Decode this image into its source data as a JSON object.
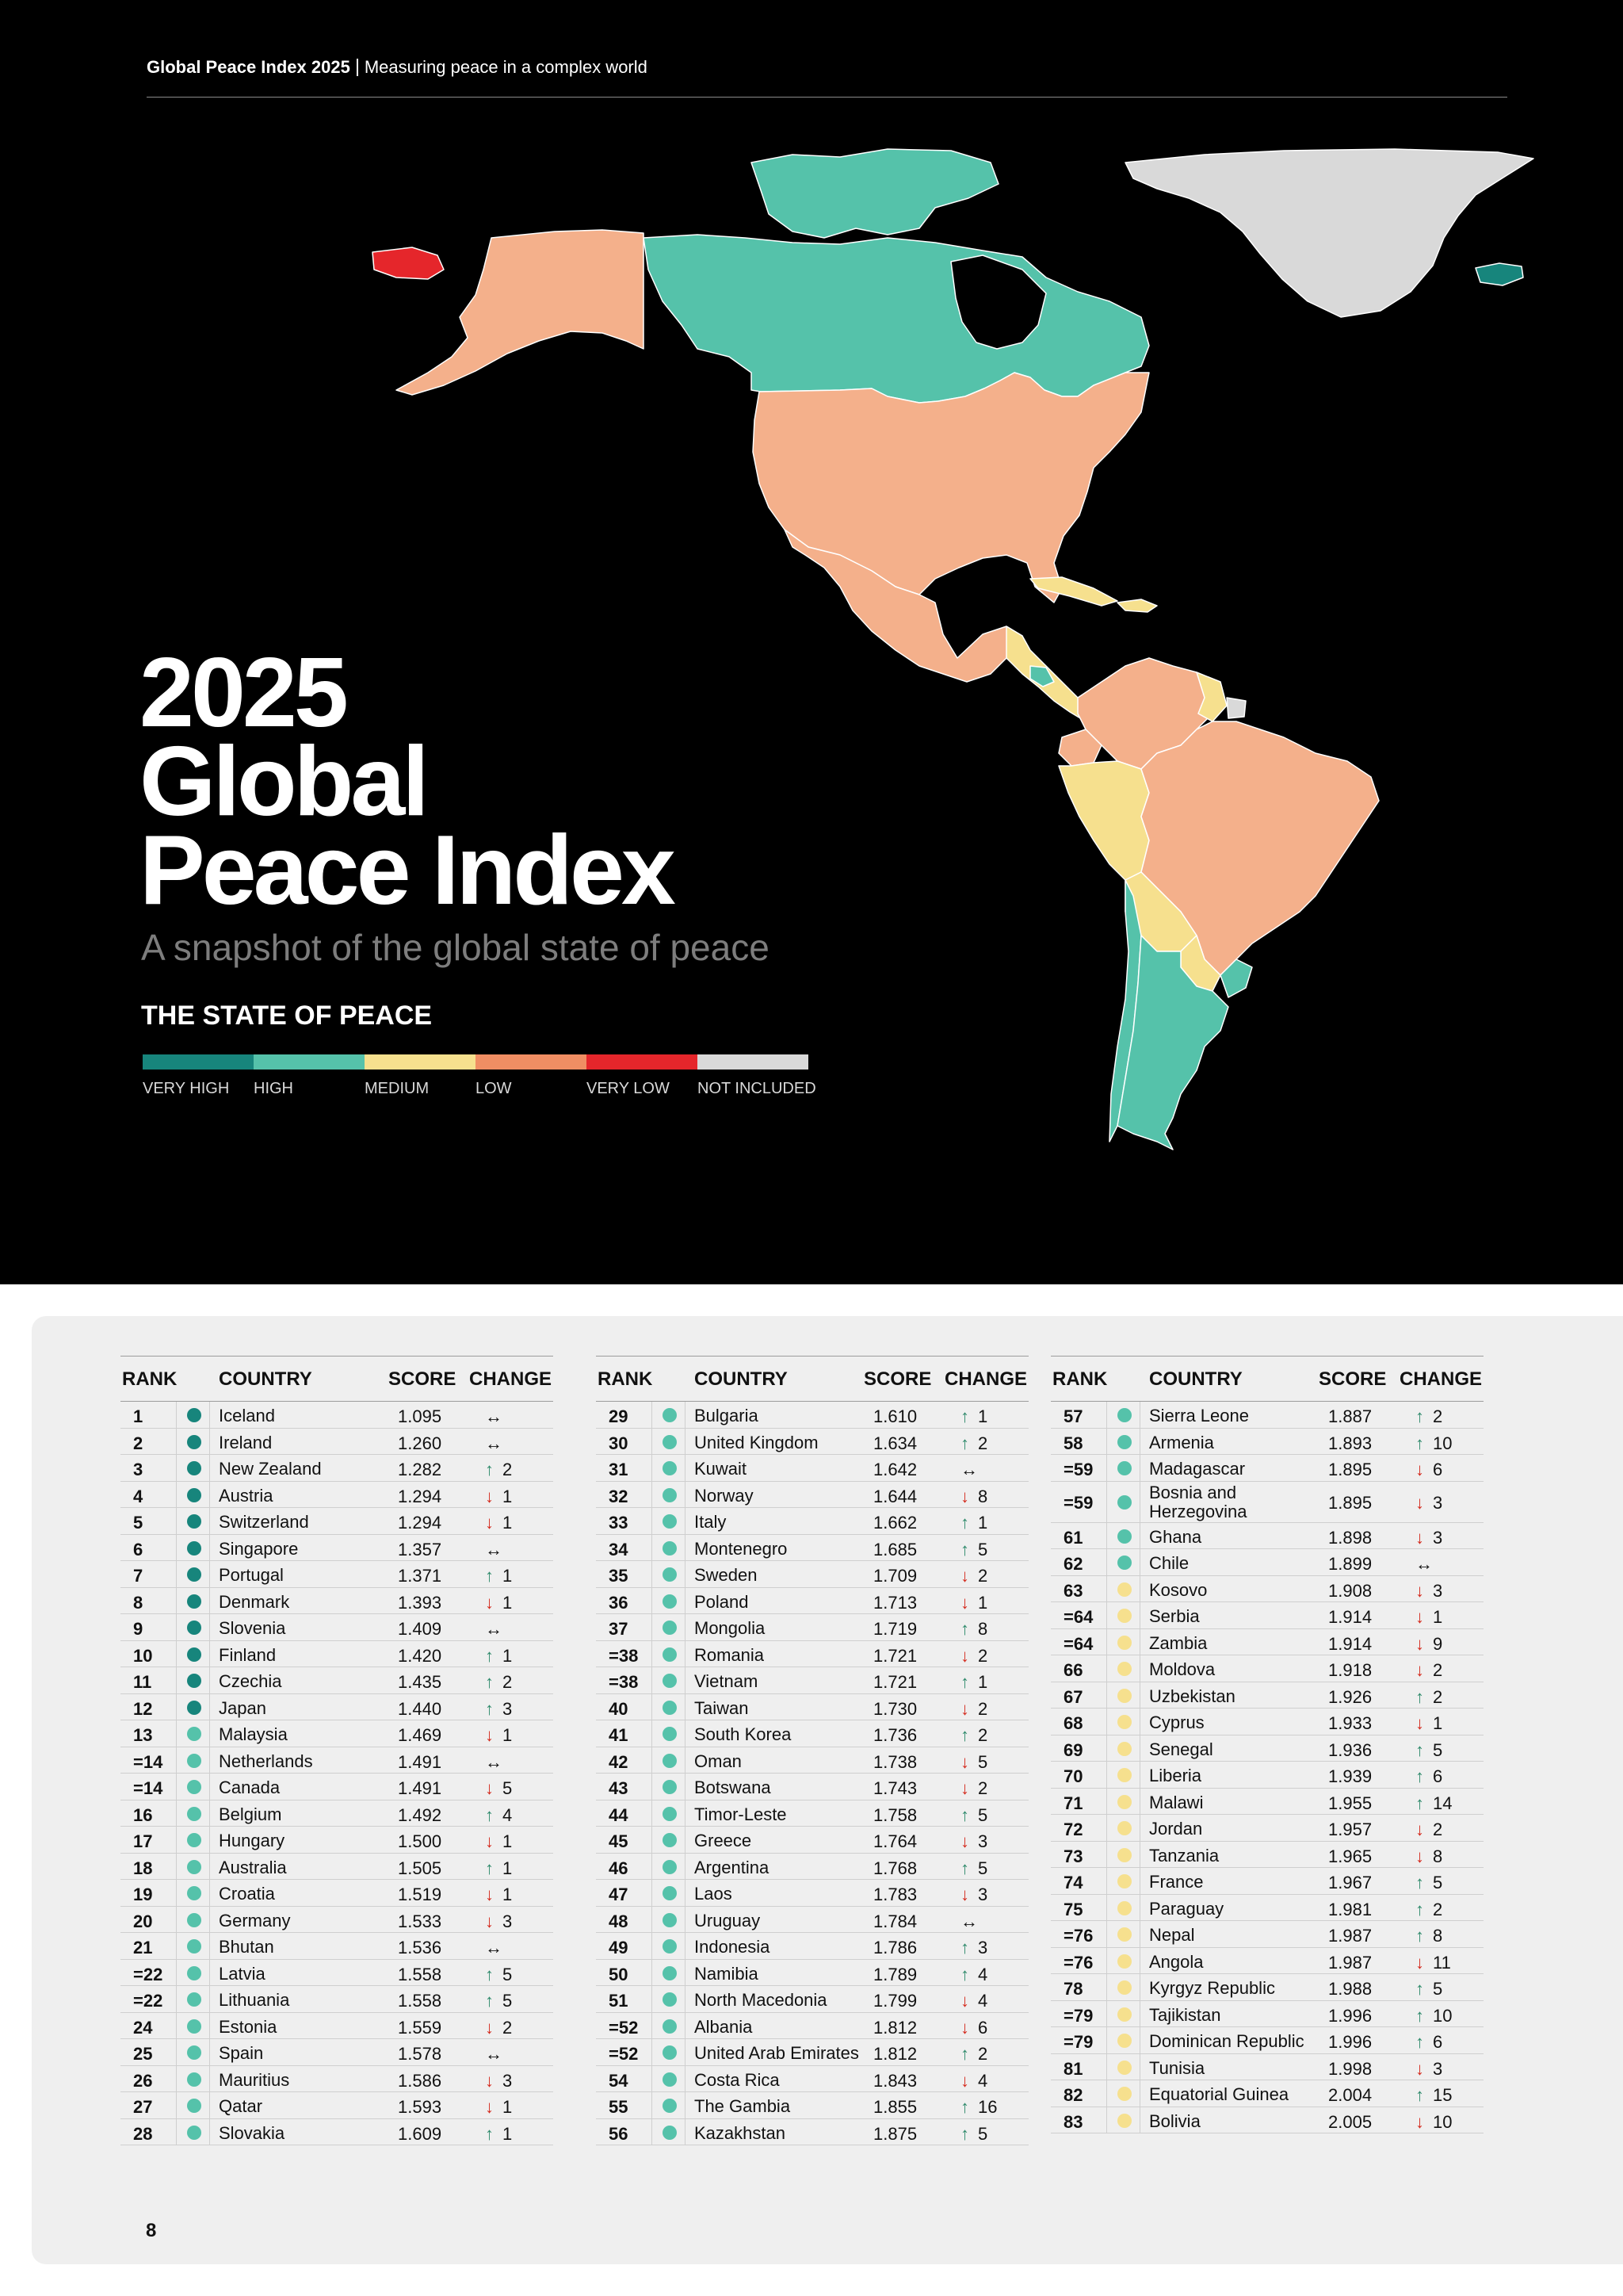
{
  "header": {
    "doc_title": "Global Peace Index 2025",
    "doc_subtitle": "Measuring peace in a complex world"
  },
  "hero": {
    "title_lines": [
      "2025",
      "Global",
      "Peace Index"
    ],
    "subtitle": "A snapshot of the global state of peace",
    "state_title": "THE STATE OF PEACE",
    "legend": [
      {
        "label": "VERY HIGH",
        "color": "#17857c"
      },
      {
        "label": "HIGH",
        "color": "#55c2aa"
      },
      {
        "label": "MEDIUM",
        "color": "#f6e08e"
      },
      {
        "label": "LOW",
        "color": "#f08e63"
      },
      {
        "label": "VERY LOW",
        "color": "#e5262b"
      },
      {
        "label": "NOT INCLUDED",
        "color": "#d9d9d9"
      }
    ]
  },
  "map_colors": {
    "very_high": "#17857c",
    "high": "#55c2aa",
    "medium": "#f6e08e",
    "low": "#f4b08b",
    "very_low": "#e5262b",
    "not_included": "#d9d9d9"
  },
  "table_headers": {
    "rank": "RANK",
    "country": "COUNTRY",
    "score": "SCORE",
    "change": "CHANGE"
  },
  "change_symbols": {
    "up": "↑",
    "down": "↓",
    "same": "↔"
  },
  "columns": [
    [
      {
        "rank": "1",
        "country": "Iceland",
        "score": "1.095",
        "level": "very_high",
        "dir": "same",
        "n": ""
      },
      {
        "rank": "2",
        "country": "Ireland",
        "score": "1.260",
        "level": "very_high",
        "dir": "same",
        "n": ""
      },
      {
        "rank": "3",
        "country": "New Zealand",
        "score": "1.282",
        "level": "very_high",
        "dir": "up",
        "n": "2"
      },
      {
        "rank": "4",
        "country": "Austria",
        "score": "1.294",
        "level": "very_high",
        "dir": "down",
        "n": "1"
      },
      {
        "rank": "5",
        "country": "Switzerland",
        "score": "1.294",
        "level": "very_high",
        "dir": "down",
        "n": "1"
      },
      {
        "rank": "6",
        "country": "Singapore",
        "score": "1.357",
        "level": "very_high",
        "dir": "same",
        "n": ""
      },
      {
        "rank": "7",
        "country": "Portugal",
        "score": "1.371",
        "level": "very_high",
        "dir": "up",
        "n": "1"
      },
      {
        "rank": "8",
        "country": "Denmark",
        "score": "1.393",
        "level": "very_high",
        "dir": "down",
        "n": "1"
      },
      {
        "rank": "9",
        "country": "Slovenia",
        "score": "1.409",
        "level": "very_high",
        "dir": "same",
        "n": ""
      },
      {
        "rank": "10",
        "country": "Finland",
        "score": "1.420",
        "level": "very_high",
        "dir": "up",
        "n": "1"
      },
      {
        "rank": "11",
        "country": "Czechia",
        "score": "1.435",
        "level": "very_high",
        "dir": "up",
        "n": "2"
      },
      {
        "rank": "12",
        "country": "Japan",
        "score": "1.440",
        "level": "very_high",
        "dir": "up",
        "n": "3"
      },
      {
        "rank": "13",
        "country": "Malaysia",
        "score": "1.469",
        "level": "high",
        "dir": "down",
        "n": "1"
      },
      {
        "rank": "=14",
        "country": "Netherlands",
        "score": "1.491",
        "level": "high",
        "dir": "same",
        "n": ""
      },
      {
        "rank": "=14",
        "country": "Canada",
        "score": "1.491",
        "level": "high",
        "dir": "down",
        "n": "5"
      },
      {
        "rank": "16",
        "country": "Belgium",
        "score": "1.492",
        "level": "high",
        "dir": "up",
        "n": "4"
      },
      {
        "rank": "17",
        "country": "Hungary",
        "score": "1.500",
        "level": "high",
        "dir": "down",
        "n": "1"
      },
      {
        "rank": "18",
        "country": "Australia",
        "score": "1.505",
        "level": "high",
        "dir": "up",
        "n": "1"
      },
      {
        "rank": "19",
        "country": "Croatia",
        "score": "1.519",
        "level": "high",
        "dir": "down",
        "n": "1"
      },
      {
        "rank": "20",
        "country": "Germany",
        "score": "1.533",
        "level": "high",
        "dir": "down",
        "n": "3"
      },
      {
        "rank": "21",
        "country": "Bhutan",
        "score": "1.536",
        "level": "high",
        "dir": "same",
        "n": ""
      },
      {
        "rank": "=22",
        "country": "Latvia",
        "score": "1.558",
        "level": "high",
        "dir": "up",
        "n": "5"
      },
      {
        "rank": "=22",
        "country": "Lithuania",
        "score": "1.558",
        "level": "high",
        "dir": "up",
        "n": "5"
      },
      {
        "rank": "24",
        "country": "Estonia",
        "score": "1.559",
        "level": "high",
        "dir": "down",
        "n": "2"
      },
      {
        "rank": "25",
        "country": "Spain",
        "score": "1.578",
        "level": "high",
        "dir": "same",
        "n": ""
      },
      {
        "rank": "26",
        "country": "Mauritius",
        "score": "1.586",
        "level": "high",
        "dir": "down",
        "n": "3"
      },
      {
        "rank": "27",
        "country": "Qatar",
        "score": "1.593",
        "level": "high",
        "dir": "down",
        "n": "1"
      },
      {
        "rank": "28",
        "country": "Slovakia",
        "score": "1.609",
        "level": "high",
        "dir": "up",
        "n": "1"
      }
    ],
    [
      {
        "rank": "29",
        "country": "Bulgaria",
        "score": "1.610",
        "level": "high",
        "dir": "up",
        "n": "1"
      },
      {
        "rank": "30",
        "country": "United Kingdom",
        "score": "1.634",
        "level": "high",
        "dir": "up",
        "n": "2"
      },
      {
        "rank": "31",
        "country": "Kuwait",
        "score": "1.642",
        "level": "high",
        "dir": "same",
        "n": ""
      },
      {
        "rank": "32",
        "country": "Norway",
        "score": "1.644",
        "level": "high",
        "dir": "down",
        "n": "8"
      },
      {
        "rank": "33",
        "country": "Italy",
        "score": "1.662",
        "level": "high",
        "dir": "up",
        "n": "1"
      },
      {
        "rank": "34",
        "country": "Montenegro",
        "score": "1.685",
        "level": "high",
        "dir": "up",
        "n": "5"
      },
      {
        "rank": "35",
        "country": "Sweden",
        "score": "1.709",
        "level": "high",
        "dir": "down",
        "n": "2"
      },
      {
        "rank": "36",
        "country": "Poland",
        "score": "1.713",
        "level": "high",
        "dir": "down",
        "n": "1"
      },
      {
        "rank": "37",
        "country": "Mongolia",
        "score": "1.719",
        "level": "high",
        "dir": "up",
        "n": "8"
      },
      {
        "rank": "=38",
        "country": "Romania",
        "score": "1.721",
        "level": "high",
        "dir": "down",
        "n": "2"
      },
      {
        "rank": "=38",
        "country": "Vietnam",
        "score": "1.721",
        "level": "high",
        "dir": "up",
        "n": "1"
      },
      {
        "rank": "40",
        "country": "Taiwan",
        "score": "1.730",
        "level": "high",
        "dir": "down",
        "n": "2"
      },
      {
        "rank": "41",
        "country": "South Korea",
        "score": "1.736",
        "level": "high",
        "dir": "up",
        "n": "2"
      },
      {
        "rank": "42",
        "country": "Oman",
        "score": "1.738",
        "level": "high",
        "dir": "down",
        "n": "5"
      },
      {
        "rank": "43",
        "country": "Botswana",
        "score": "1.743",
        "level": "high",
        "dir": "down",
        "n": "2"
      },
      {
        "rank": "44",
        "country": "Timor-Leste",
        "score": "1.758",
        "level": "high",
        "dir": "up",
        "n": "5"
      },
      {
        "rank": "45",
        "country": "Greece",
        "score": "1.764",
        "level": "high",
        "dir": "down",
        "n": "3"
      },
      {
        "rank": "46",
        "country": "Argentina",
        "score": "1.768",
        "level": "high",
        "dir": "up",
        "n": "5"
      },
      {
        "rank": "47",
        "country": "Laos",
        "score": "1.783",
        "level": "high",
        "dir": "down",
        "n": "3"
      },
      {
        "rank": "48",
        "country": "Uruguay",
        "score": "1.784",
        "level": "high",
        "dir": "same",
        "n": ""
      },
      {
        "rank": "49",
        "country": "Indonesia",
        "score": "1.786",
        "level": "high",
        "dir": "up",
        "n": "3"
      },
      {
        "rank": "50",
        "country": "Namibia",
        "score": "1.789",
        "level": "high",
        "dir": "up",
        "n": "4"
      },
      {
        "rank": "51",
        "country": "North Macedonia",
        "score": "1.799",
        "level": "high",
        "dir": "down",
        "n": "4"
      },
      {
        "rank": "=52",
        "country": "Albania",
        "score": "1.812",
        "level": "high",
        "dir": "down",
        "n": "6"
      },
      {
        "rank": "=52",
        "country": "United Arab Emirates",
        "score": "1.812",
        "level": "high",
        "dir": "up",
        "n": "2"
      },
      {
        "rank": "54",
        "country": "Costa Rica",
        "score": "1.843",
        "level": "high",
        "dir": "down",
        "n": "4"
      },
      {
        "rank": "55",
        "country": "The Gambia",
        "score": "1.855",
        "level": "high",
        "dir": "up",
        "n": "16"
      },
      {
        "rank": "56",
        "country": "Kazakhstan",
        "score": "1.875",
        "level": "high",
        "dir": "up",
        "n": "5"
      }
    ],
    [
      {
        "rank": "57",
        "country": "Sierra Leone",
        "score": "1.887",
        "level": "high",
        "dir": "up",
        "n": "2"
      },
      {
        "rank": "58",
        "country": "Armenia",
        "score": "1.893",
        "level": "high",
        "dir": "up",
        "n": "10"
      },
      {
        "rank": "=59",
        "country": "Madagascar",
        "score": "1.895",
        "level": "high",
        "dir": "down",
        "n": "6"
      },
      {
        "rank": "=59",
        "country": "Bosnia and Herzegovina",
        "score": "1.895",
        "level": "high",
        "dir": "down",
        "n": "3",
        "tall": true
      },
      {
        "rank": "61",
        "country": "Ghana",
        "score": "1.898",
        "level": "high",
        "dir": "down",
        "n": "3"
      },
      {
        "rank": "62",
        "country": "Chile",
        "score": "1.899",
        "level": "high",
        "dir": "same",
        "n": ""
      },
      {
        "rank": "63",
        "country": "Kosovo",
        "score": "1.908",
        "level": "medium",
        "dir": "down",
        "n": "3"
      },
      {
        "rank": "=64",
        "country": "Serbia",
        "score": "1.914",
        "level": "medium",
        "dir": "down",
        "n": "1"
      },
      {
        "rank": "=64",
        "country": "Zambia",
        "score": "1.914",
        "level": "medium",
        "dir": "down",
        "n": "9"
      },
      {
        "rank": "66",
        "country": "Moldova",
        "score": "1.918",
        "level": "medium",
        "dir": "down",
        "n": "2"
      },
      {
        "rank": "67",
        "country": "Uzbekistan",
        "score": "1.926",
        "level": "medium",
        "dir": "up",
        "n": "2"
      },
      {
        "rank": "68",
        "country": "Cyprus",
        "score": "1.933",
        "level": "medium",
        "dir": "down",
        "n": "1"
      },
      {
        "rank": "69",
        "country": "Senegal",
        "score": "1.936",
        "level": "medium",
        "dir": "up",
        "n": "5"
      },
      {
        "rank": "70",
        "country": "Liberia",
        "score": "1.939",
        "level": "medium",
        "dir": "up",
        "n": "6"
      },
      {
        "rank": "71",
        "country": "Malawi",
        "score": "1.955",
        "level": "medium",
        "dir": "up",
        "n": "14"
      },
      {
        "rank": "72",
        "country": "Jordan",
        "score": "1.957",
        "level": "medium",
        "dir": "down",
        "n": "2"
      },
      {
        "rank": "73",
        "country": "Tanzania",
        "score": "1.965",
        "level": "medium",
        "dir": "down",
        "n": "8"
      },
      {
        "rank": "74",
        "country": "France",
        "score": "1.967",
        "level": "medium",
        "dir": "up",
        "n": "5"
      },
      {
        "rank": "75",
        "country": "Paraguay",
        "score": "1.981",
        "level": "medium",
        "dir": "up",
        "n": "2"
      },
      {
        "rank": "=76",
        "country": "Nepal",
        "score": "1.987",
        "level": "medium",
        "dir": "up",
        "n": "8"
      },
      {
        "rank": "=76",
        "country": "Angola",
        "score": "1.987",
        "level": "medium",
        "dir": "down",
        "n": "11"
      },
      {
        "rank": "78",
        "country": "Kyrgyz Republic",
        "score": "1.988",
        "level": "medium",
        "dir": "up",
        "n": "5"
      },
      {
        "rank": "=79",
        "country": "Tajikistan",
        "score": "1.996",
        "level": "medium",
        "dir": "up",
        "n": "10"
      },
      {
        "rank": "=79",
        "country": "Dominican Republic",
        "score": "1.996",
        "level": "medium",
        "dir": "up",
        "n": "6"
      },
      {
        "rank": "81",
        "country": "Tunisia",
        "score": "1.998",
        "level": "medium",
        "dir": "down",
        "n": "3"
      },
      {
        "rank": "82",
        "country": "Equatorial Guinea",
        "score": "2.004",
        "level": "medium",
        "dir": "up",
        "n": "15"
      },
      {
        "rank": "83",
        "country": "Bolivia",
        "score": "2.005",
        "level": "medium",
        "dir": "down",
        "n": "10"
      }
    ]
  ],
  "page_number": "8"
}
